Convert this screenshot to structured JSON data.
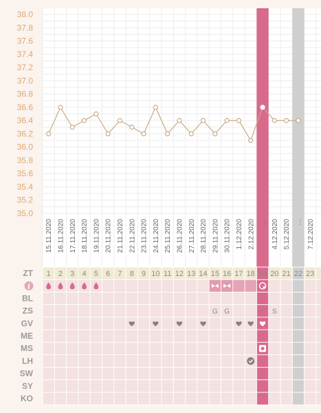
{
  "colors": {
    "accent": "#d96a8c",
    "axis_label": "#dfa871",
    "line": "#c8aa85",
    "row_bg": "#f4e1e1",
    "header_bg": "#f1ead4",
    "gray_col": "#cfcfcf"
  },
  "chart_data": {
    "type": "line",
    "ylim": [
      35.0,
      38.0
    ],
    "yticks": [
      "38.0",
      "37.8",
      "37.6",
      "37.4",
      "37.2",
      "37.0",
      "36.8",
      "36.6",
      "36.4",
      "36.2",
      "36.0",
      "35.8",
      "35.6",
      "35.4",
      "35.2",
      "35.0"
    ],
    "x": [
      1,
      2,
      3,
      4,
      5,
      6,
      7,
      8,
      9,
      10,
      11,
      12,
      13,
      14,
      15,
      16,
      17,
      18,
      19,
      20,
      21,
      22
    ],
    "values": [
      36.2,
      36.6,
      36.3,
      36.4,
      36.5,
      36.2,
      36.4,
      36.3,
      36.2,
      36.6,
      36.2,
      36.4,
      36.2,
      36.4,
      36.2,
      36.4,
      36.4,
      36.1,
      36.6,
      36.4,
      36.4,
      36.4
    ],
    "highlight_day": 19,
    "gray_day": 22
  },
  "dates": [
    "15.11.2020",
    "16.11.2020",
    "17.11.2020",
    "18.11.2020",
    "19.11.2020",
    "20.11.2020",
    "21.11.2020",
    "22.11.2020",
    "23.11.2020",
    "24.11.2020",
    "25.11.2020",
    "26.11.2020",
    "27.11.2020",
    "28.11.2020",
    "29.11.2020",
    "30.11.2020",
    "1.12.2020",
    "2.12.2020",
    "…",
    "4.12.2020",
    "5.12.2020",
    "…",
    "7.12.2020"
  ],
  "days": [
    "1",
    "2",
    "3",
    "4",
    "5",
    "6",
    "7",
    "8",
    "9",
    "10",
    "11",
    "12",
    "13",
    "14",
    "15",
    "16",
    "17",
    "18",
    "19",
    "20",
    "21",
    "22",
    "23"
  ],
  "rows": {
    "zt": "ZT",
    "info_icon": "info-icon",
    "labels": [
      "BL",
      "ZS",
      "GV",
      "ME",
      "MS",
      "LH",
      "SW",
      "SY",
      "KO"
    ]
  },
  "marks": {
    "drops_days": [
      1,
      2,
      3,
      4,
      5
    ],
    "bow_days": [
      15,
      16
    ],
    "bleed_shade_days": [
      17,
      18
    ],
    "zs": [
      {
        "day": 15,
        "text": "G"
      },
      {
        "day": 16,
        "text": "G"
      },
      {
        "day": 20,
        "text": "S"
      }
    ],
    "gv_heart_days": [
      8,
      10,
      12,
      14,
      17,
      18,
      19
    ],
    "ms_icon_day": 19,
    "lh_check_day": 18
  }
}
